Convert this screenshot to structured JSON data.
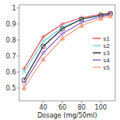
{
  "chart_data": {
    "type": "line",
    "xlabel": "Dosage (mg/50ml)",
    "x": [
      20,
      40,
      60,
      80,
      100,
      110
    ],
    "series": [
      {
        "name": "s1",
        "color": "#e05050",
        "marker": "plus",
        "values": [
          0.62,
          0.82,
          0.9,
          0.94,
          0.96,
          0.97
        ]
      },
      {
        "name": "s2",
        "color": "#70d0e0",
        "marker": "circle",
        "values": [
          0.6,
          0.79,
          0.88,
          0.93,
          0.95,
          0.96
        ]
      },
      {
        "name": "s3",
        "color": "#303030",
        "marker": "square",
        "values": [
          0.55,
          0.76,
          0.87,
          0.93,
          0.955,
          0.965
        ]
      },
      {
        "name": "s4",
        "color": "#9060c0",
        "marker": "diamond",
        "values": [
          0.53,
          0.72,
          0.84,
          0.91,
          0.945,
          0.958
        ]
      },
      {
        "name": "s5",
        "color": "#f0a080",
        "marker": "triangle",
        "values": [
          0.5,
          0.68,
          0.81,
          0.89,
          0.935,
          0.95
        ]
      }
    ],
    "xlim": [
      15,
      115
    ],
    "ylim": [
      0.42,
      1.02
    ],
    "xticks": [
      40,
      60,
      80,
      100
    ],
    "yticks": [
      0.5,
      0.6,
      0.7,
      0.8,
      0.9,
      1
    ],
    "grid": false,
    "legend": "right"
  }
}
